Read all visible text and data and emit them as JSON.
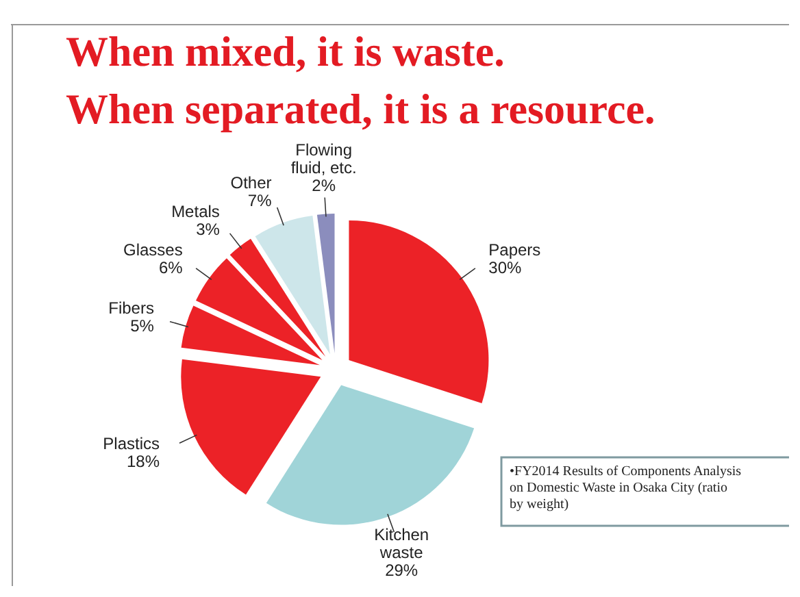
{
  "chart_data": {
    "type": "pie",
    "title": "When mixed, it is waste.",
    "subtitle": "When separated, it is a resource.",
    "categories": [
      "Papers",
      "Kitchen waste",
      "Plastics",
      "Fibers",
      "Glasses",
      "Metals",
      "Other",
      "Flowing fluid, etc."
    ],
    "values": [
      30,
      29,
      18,
      5,
      6,
      3,
      7,
      2
    ],
    "value_labels": [
      "30%",
      "29%",
      "18%",
      "5%",
      "6%",
      "3%",
      "7%",
      "2%"
    ],
    "colors": [
      "#ec2227",
      "#a0d4d8",
      "#ec2227",
      "#ec2227",
      "#ec2227",
      "#ec2227",
      "#cde6ea",
      "#8b8dbd"
    ],
    "annotations": [
      "•FY2014 Results of Components Analysis on Domestic Waste in Osaka City (ratio by weight)"
    ]
  }
}
